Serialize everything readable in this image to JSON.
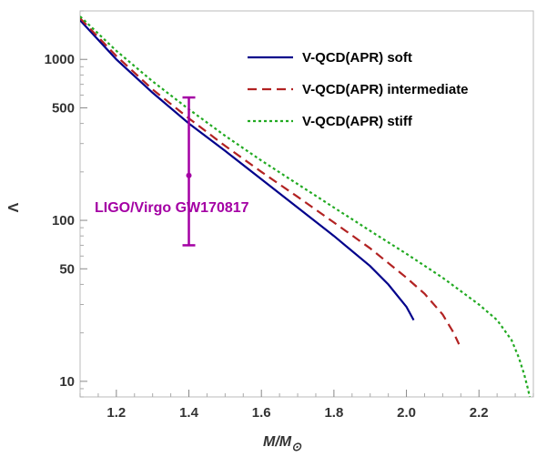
{
  "chart_data": {
    "type": "line",
    "xlabel": "M/M⊙",
    "ylabel": "Λ",
    "xlim": [
      1.1,
      2.35
    ],
    "ylim": [
      8,
      2000
    ],
    "y_scale": "log",
    "x_ticks": [
      1.2,
      1.4,
      1.6,
      1.8,
      2.0,
      2.2
    ],
    "x_tick_labels": [
      "1.2",
      "1.4",
      "1.6",
      "1.8",
      "2.0",
      "2.2"
    ],
    "y_ticks": [
      10,
      50,
      100,
      500,
      1000
    ],
    "y_tick_labels": [
      "10",
      "50",
      "100",
      "500",
      "1000"
    ],
    "legend_position": "top-right",
    "grid": false,
    "series": [
      {
        "name": "V-QCD(APR) soft",
        "color": "#00008b",
        "dash": "solid",
        "points": [
          [
            1.1,
            1750
          ],
          [
            1.2,
            1000
          ],
          [
            1.3,
            620
          ],
          [
            1.4,
            400
          ],
          [
            1.5,
            270
          ],
          [
            1.6,
            180
          ],
          [
            1.7,
            120
          ],
          [
            1.8,
            80
          ],
          [
            1.9,
            52
          ],
          [
            1.95,
            40
          ],
          [
            2.0,
            29
          ],
          [
            2.02,
            24
          ]
        ]
      },
      {
        "name": "V-QCD(APR) intermediate",
        "color": "#b22222",
        "dash": "dashed",
        "points": [
          [
            1.1,
            1800
          ],
          [
            1.2,
            1050
          ],
          [
            1.3,
            650
          ],
          [
            1.4,
            430
          ],
          [
            1.5,
            290
          ],
          [
            1.6,
            200
          ],
          [
            1.7,
            140
          ],
          [
            1.8,
            97
          ],
          [
            1.9,
            67
          ],
          [
            2.0,
            44
          ],
          [
            2.05,
            35
          ],
          [
            2.1,
            26
          ],
          [
            2.13,
            20
          ],
          [
            2.145,
            17
          ]
        ]
      },
      {
        "name": "V-QCD(APR) stiff",
        "color": "#22aa22",
        "dash": "dotted",
        "points": [
          [
            1.1,
            1850
          ],
          [
            1.2,
            1130
          ],
          [
            1.3,
            730
          ],
          [
            1.4,
            490
          ],
          [
            1.5,
            335
          ],
          [
            1.6,
            235
          ],
          [
            1.7,
            168
          ],
          [
            1.8,
            120
          ],
          [
            1.9,
            86
          ],
          [
            2.0,
            62
          ],
          [
            2.1,
            44
          ],
          [
            2.2,
            30
          ],
          [
            2.25,
            24
          ],
          [
            2.29,
            18
          ],
          [
            2.31,
            14
          ],
          [
            2.325,
            11
          ],
          [
            2.335,
            9
          ],
          [
            2.34,
            8
          ]
        ]
      }
    ],
    "annotation": {
      "label": "LIGO/Virgo GW170817",
      "color": "#a400a4",
      "x": 1.4,
      "y": 190,
      "y_low": 70,
      "y_high": 580
    }
  }
}
